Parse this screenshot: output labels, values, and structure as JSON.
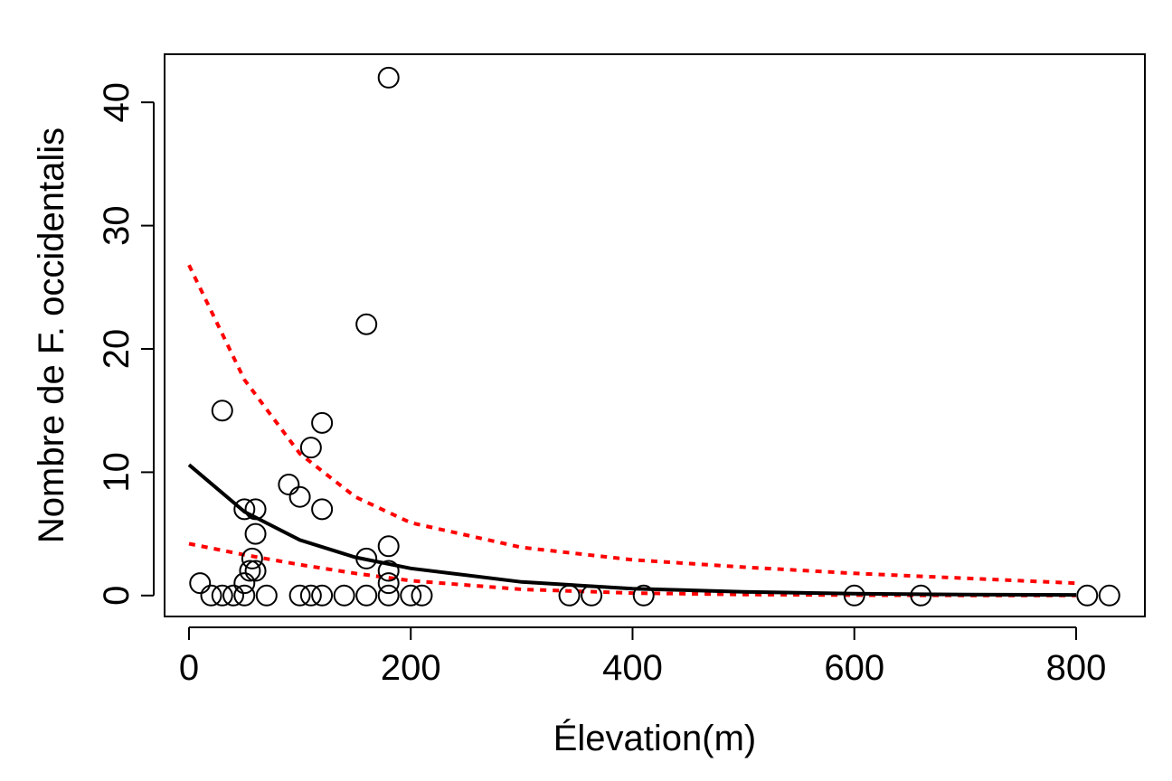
{
  "chart_data": {
    "type": "scatter",
    "title": "",
    "xlabel": "Élevation(m)",
    "ylabel": "Nombre de F. occidentalis",
    "xlim": [
      -22,
      862
    ],
    "ylim": [
      -1.7,
      43.9
    ],
    "x_ticks": [
      0,
      200,
      400,
      600,
      800
    ],
    "y_ticks": [
      0,
      10,
      20,
      30,
      40
    ],
    "grid": false,
    "legend": "none",
    "points": [
      {
        "x": 10,
        "y": 1
      },
      {
        "x": 20,
        "y": 0
      },
      {
        "x": 30,
        "y": 15
      },
      {
        "x": 30,
        "y": 0
      },
      {
        "x": 40,
        "y": 0
      },
      {
        "x": 50,
        "y": 0
      },
      {
        "x": 50,
        "y": 1
      },
      {
        "x": 50,
        "y": 7
      },
      {
        "x": 55,
        "y": 2
      },
      {
        "x": 57,
        "y": 3
      },
      {
        "x": 60,
        "y": 2
      },
      {
        "x": 60,
        "y": 5
      },
      {
        "x": 60,
        "y": 7
      },
      {
        "x": 70,
        "y": 0
      },
      {
        "x": 90,
        "y": 9
      },
      {
        "x": 100,
        "y": 8
      },
      {
        "x": 100,
        "y": 0
      },
      {
        "x": 110,
        "y": 0
      },
      {
        "x": 110,
        "y": 12
      },
      {
        "x": 120,
        "y": 14
      },
      {
        "x": 120,
        "y": 7
      },
      {
        "x": 120,
        "y": 0
      },
      {
        "x": 140,
        "y": 0
      },
      {
        "x": 160,
        "y": 22
      },
      {
        "x": 160,
        "y": 3
      },
      {
        "x": 160,
        "y": 0
      },
      {
        "x": 180,
        "y": 42
      },
      {
        "x": 180,
        "y": 4
      },
      {
        "x": 180,
        "y": 2
      },
      {
        "x": 180,
        "y": 1
      },
      {
        "x": 180,
        "y": 0
      },
      {
        "x": 200,
        "y": 0
      },
      {
        "x": 210,
        "y": 0
      },
      {
        "x": 343,
        "y": 0
      },
      {
        "x": 363,
        "y": 0
      },
      {
        "x": 410,
        "y": 0
      },
      {
        "x": 600,
        "y": 0
      },
      {
        "x": 660,
        "y": 0
      },
      {
        "x": 810,
        "y": 0
      },
      {
        "x": 830,
        "y": 0
      }
    ],
    "fit_line": {
      "color": "#000000",
      "x": [
        0,
        50,
        100,
        150,
        200,
        300,
        400,
        500,
        600,
        700,
        800
      ],
      "y": [
        10.6,
        6.8,
        4.5,
        3.1,
        2.2,
        1.1,
        0.55,
        0.3,
        0.15,
        0.08,
        0.05
      ]
    },
    "ci_upper": {
      "color": "#ff0000",
      "x": [
        0,
        50,
        100,
        150,
        200,
        300,
        400,
        500,
        600,
        700,
        800
      ],
      "y": [
        26.8,
        17.5,
        11.5,
        8.0,
        5.9,
        3.9,
        2.9,
        2.3,
        1.8,
        1.4,
        1.0
      ]
    },
    "ci_lower": {
      "color": "#ff0000",
      "x": [
        0,
        50,
        100,
        150,
        200,
        300,
        400,
        500,
        600,
        700,
        800
      ],
      "y": [
        4.2,
        3.3,
        2.5,
        1.8,
        1.2,
        0.5,
        0.2,
        0.08,
        0.03,
        0.01,
        0.0
      ]
    }
  }
}
